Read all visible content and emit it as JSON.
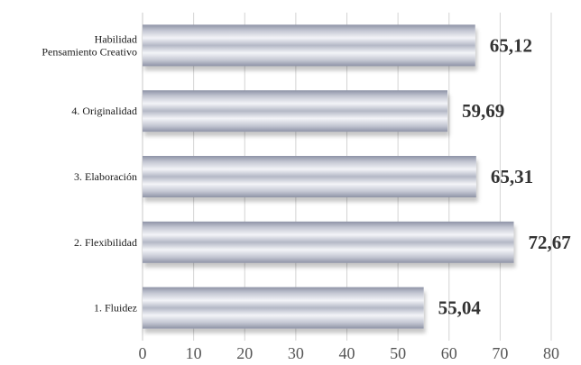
{
  "chart_data": {
    "type": "bar",
    "orientation": "horizontal",
    "categories": [
      [
        "Habilidad",
        "Pensamiento Creativo"
      ],
      [
        "4. Originalidad"
      ],
      [
        "3. Elaboración"
      ],
      [
        "2. Flexibilidad"
      ],
      [
        "1. Fluidez"
      ]
    ],
    "values": [
      65.12,
      59.69,
      65.31,
      72.67,
      55.04
    ],
    "value_labels": [
      "65,12",
      "59,69",
      "65,31",
      "72,67",
      "55,04"
    ],
    "xlim": [
      0,
      80
    ],
    "xticks": [
      0,
      10,
      20,
      30,
      40,
      50,
      60,
      70,
      80
    ],
    "title": "",
    "xlabel": "",
    "ylabel": "",
    "grid": true,
    "legend": "none",
    "colors": {
      "bar_dark": "#8e93a6",
      "bar_light": "#f3f4f8",
      "shadow": "#d0d0d0"
    }
  }
}
